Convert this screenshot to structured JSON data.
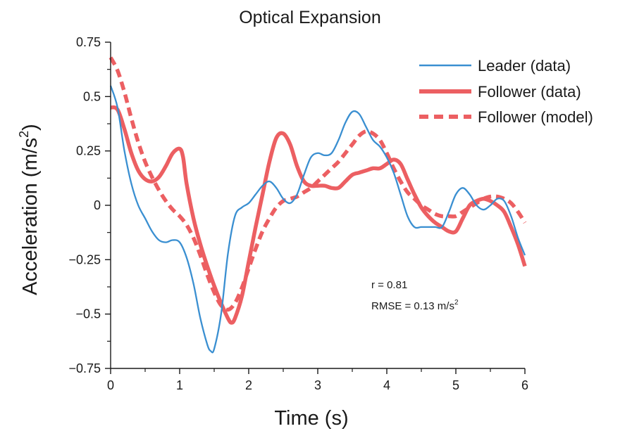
{
  "chart_data": {
    "type": "line",
    "title": "Optical Expansion",
    "xlabel": "Time (s)",
    "ylabel": "Acceleration (m/s",
    "ylabel_superscript": "2",
    "ylabel_close": ")",
    "xlim": [
      0,
      6
    ],
    "ylim": [
      -0.75,
      0.75
    ],
    "x_ticks": [
      0,
      1,
      2,
      3,
      4,
      5,
      6
    ],
    "x_tick_labels": [
      "0",
      "1",
      "2",
      "3",
      "4",
      "5",
      "6"
    ],
    "y_ticks": [
      0.75,
      0.5,
      0.25,
      0,
      -0.25,
      -0.5,
      -0.75
    ],
    "y_tick_labels": [
      "0.75",
      "0.5",
      "0.25",
      "0",
      "−0.25",
      "−0.5",
      "−0.75"
    ],
    "grid": false,
    "legend_position": "top-right",
    "series": [
      {
        "name": "Leader (data)",
        "color": "#3a8fd1",
        "style": "solid",
        "x": [
          0,
          0.1,
          0.2,
          0.3,
          0.4,
          0.5,
          0.6,
          0.7,
          0.8,
          0.9,
          1.0,
          1.1,
          1.2,
          1.3,
          1.4,
          1.45,
          1.5,
          1.6,
          1.7,
          1.8,
          1.9,
          2.0,
          2.1,
          2.2,
          2.3,
          2.4,
          2.5,
          2.6,
          2.7,
          2.8,
          2.9,
          3.0,
          3.1,
          3.2,
          3.3,
          3.4,
          3.5,
          3.6,
          3.7,
          3.8,
          3.9,
          4.0,
          4.1,
          4.2,
          4.3,
          4.4,
          4.5,
          4.6,
          4.7,
          4.8,
          4.9,
          5.0,
          5.1,
          5.2,
          5.3,
          5.4,
          5.5,
          5.6,
          5.7,
          5.8,
          5.9,
          6.0
        ],
        "y": [
          0.55,
          0.45,
          0.25,
          0.1,
          0.0,
          -0.06,
          -0.12,
          -0.16,
          -0.17,
          -0.16,
          -0.17,
          -0.24,
          -0.36,
          -0.52,
          -0.64,
          -0.67,
          -0.66,
          -0.5,
          -0.22,
          -0.05,
          -0.01,
          0.01,
          0.05,
          0.09,
          0.11,
          0.08,
          0.03,
          0.01,
          0.05,
          0.14,
          0.22,
          0.24,
          0.23,
          0.24,
          0.3,
          0.38,
          0.43,
          0.42,
          0.36,
          0.3,
          0.27,
          0.22,
          0.15,
          0.05,
          -0.05,
          -0.1,
          -0.1,
          -0.1,
          -0.1,
          -0.1,
          -0.03,
          0.05,
          0.08,
          0.05,
          0.0,
          -0.02,
          0.0,
          0.03,
          0.02,
          -0.05,
          -0.15,
          -0.23
        ]
      },
      {
        "name": "Follower (data)",
        "color": "#ec5f62",
        "style": "solid",
        "x": [
          0,
          0.1,
          0.2,
          0.3,
          0.4,
          0.5,
          0.6,
          0.7,
          0.8,
          0.9,
          1.0,
          1.05,
          1.1,
          1.2,
          1.3,
          1.4,
          1.5,
          1.6,
          1.7,
          1.75,
          1.8,
          1.9,
          2.0,
          2.1,
          2.2,
          2.3,
          2.4,
          2.5,
          2.6,
          2.7,
          2.8,
          2.9,
          3.0,
          3.1,
          3.2,
          3.3,
          3.4,
          3.5,
          3.6,
          3.7,
          3.8,
          3.9,
          4.0,
          4.1,
          4.2,
          4.3,
          4.4,
          4.5,
          4.6,
          4.7,
          4.8,
          4.9,
          5.0,
          5.1,
          5.2,
          5.3,
          5.4,
          5.5,
          5.6,
          5.7,
          5.8,
          5.9,
          6.0
        ],
        "y": [
          0.45,
          0.44,
          0.35,
          0.24,
          0.16,
          0.12,
          0.11,
          0.13,
          0.18,
          0.24,
          0.26,
          0.22,
          0.1,
          -0.06,
          -0.18,
          -0.28,
          -0.37,
          -0.45,
          -0.52,
          -0.54,
          -0.52,
          -0.42,
          -0.26,
          -0.1,
          0.05,
          0.2,
          0.31,
          0.33,
          0.28,
          0.18,
          0.11,
          0.09,
          0.09,
          0.09,
          0.08,
          0.08,
          0.11,
          0.14,
          0.15,
          0.16,
          0.17,
          0.17,
          0.19,
          0.21,
          0.19,
          0.12,
          0.05,
          -0.01,
          -0.05,
          -0.08,
          -0.1,
          -0.12,
          -0.12,
          -0.06,
          0.0,
          0.02,
          0.03,
          0.02,
          0.0,
          -0.03,
          -0.1,
          -0.18,
          -0.28
        ]
      },
      {
        "name": "Follower (model)",
        "color": "#ec5f62",
        "style": "dashed",
        "x": [
          0,
          0.1,
          0.2,
          0.3,
          0.4,
          0.5,
          0.6,
          0.7,
          0.8,
          0.9,
          1.0,
          1.1,
          1.2,
          1.3,
          1.4,
          1.5,
          1.6,
          1.7,
          1.8,
          1.9,
          2.0,
          2.1,
          2.2,
          2.3,
          2.4,
          2.5,
          2.6,
          2.7,
          2.8,
          2.9,
          3.0,
          3.1,
          3.2,
          3.3,
          3.4,
          3.5,
          3.6,
          3.7,
          3.8,
          3.9,
          4.0,
          4.1,
          4.2,
          4.3,
          4.4,
          4.5,
          4.6,
          4.7,
          4.8,
          4.9,
          5.0,
          5.1,
          5.2,
          5.3,
          5.4,
          5.5,
          5.6,
          5.7,
          5.8,
          5.9,
          6.0
        ],
        "y": [
          0.68,
          0.62,
          0.52,
          0.4,
          0.29,
          0.2,
          0.13,
          0.07,
          0.02,
          -0.02,
          -0.05,
          -0.09,
          -0.15,
          -0.23,
          -0.32,
          -0.4,
          -0.46,
          -0.48,
          -0.45,
          -0.38,
          -0.29,
          -0.2,
          -0.12,
          -0.06,
          -0.01,
          0.02,
          0.03,
          0.04,
          0.06,
          0.08,
          0.11,
          0.14,
          0.17,
          0.2,
          0.24,
          0.28,
          0.32,
          0.34,
          0.33,
          0.3,
          0.24,
          0.17,
          0.11,
          0.06,
          0.03,
          0.0,
          -0.02,
          -0.04,
          -0.05,
          -0.05,
          -0.05,
          -0.03,
          -0.01,
          0.01,
          0.03,
          0.04,
          0.04,
          0.03,
          0.01,
          -0.03,
          -0.08
        ]
      }
    ],
    "annotations": [
      {
        "text": "r = 0.81"
      },
      {
        "text": "RMSE = 0.13 m/s",
        "superscript": "2"
      }
    ]
  }
}
